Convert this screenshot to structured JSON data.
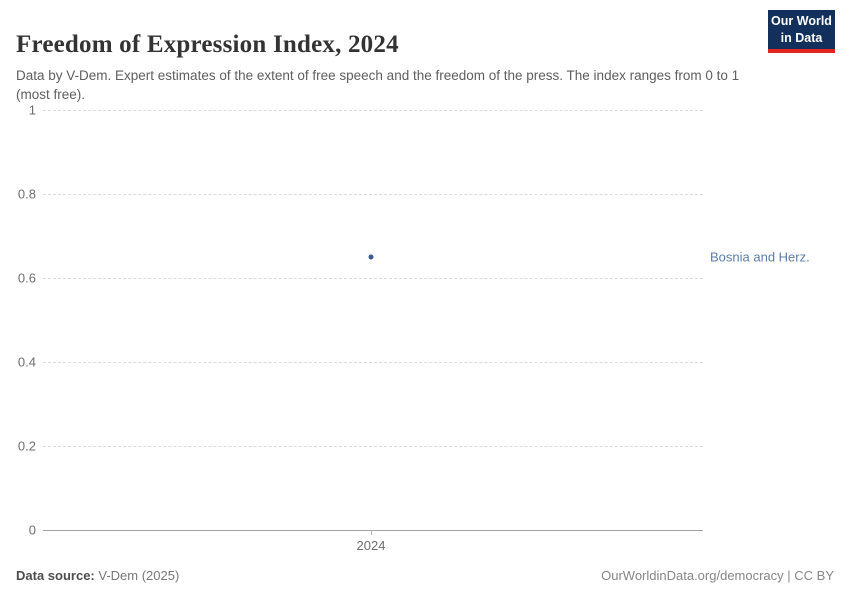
{
  "header": {
    "title": "Freedom of Expression Index, 2024",
    "subtitle": "Data by V-Dem. Expert estimates of the extent of free speech and the freedom of the press. The index ranges from 0 to 1 (most free).",
    "logo": {
      "line1": "Our World",
      "line2": "in Data",
      "bg_color": "#12305b",
      "accent_color": "#e0261f"
    }
  },
  "chart_data": {
    "type": "scatter",
    "title": "Freedom of Expression Index, 2024",
    "xlabel": "",
    "ylabel": "",
    "series": [
      {
        "name": "Bosnia and Herz.",
        "x": [
          2024
        ],
        "values": [
          0.65
        ]
      }
    ],
    "xticks": [
      "2024"
    ],
    "yticks": [
      0,
      0.2,
      0.4,
      0.6,
      0.8,
      1
    ],
    "ylim": [
      0,
      1
    ],
    "grid": true,
    "legend_position": "right-of-point",
    "point_color": "#3b5a92",
    "entity_label_color": "#5b7dab"
  },
  "footer": {
    "source_label": "Data source:",
    "source_value": " V-Dem (2025)",
    "attribution": "OurWorldinData.org/democracy | CC BY"
  }
}
